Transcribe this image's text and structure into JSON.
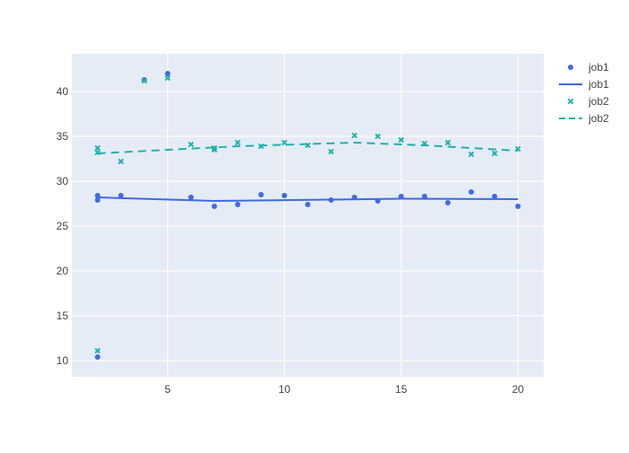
{
  "chart_data": {
    "type": "scatter",
    "title": "",
    "xlabel": "",
    "ylabel": "",
    "xlim": [
      0.9,
      21.1
    ],
    "ylim": [
      8.2,
      44.2
    ],
    "x_ticks": [
      5,
      10,
      15,
      20
    ],
    "y_ticks": [
      10,
      15,
      20,
      25,
      30,
      35,
      40
    ],
    "grid": true,
    "legend_position": "top-right",
    "colors": {
      "plot_bg": "#e5ecf6",
      "grid": "#ffffff",
      "job1": "#4169e1",
      "job2": "#20b2aa"
    },
    "series": [
      {
        "name": "job1",
        "mode": "markers",
        "marker": "circle",
        "color": "#4169e1",
        "x": [
          2,
          2,
          2,
          3,
          4,
          5,
          6,
          7,
          8,
          9,
          10,
          11,
          12,
          13,
          14,
          15,
          16,
          17,
          18,
          19,
          20
        ],
        "y": [
          28.4,
          27.9,
          10.4,
          28.4,
          41.3,
          42.0,
          28.2,
          27.2,
          27.4,
          28.5,
          28.4,
          27.4,
          27.9,
          28.2,
          27.8,
          28.3,
          28.3,
          27.6,
          28.8,
          28.3,
          27.2
        ]
      },
      {
        "name": "job1",
        "mode": "lines",
        "dash": "solid",
        "color": "#4169e1",
        "x": [
          2,
          7,
          12,
          15,
          20
        ],
        "y": [
          28.2,
          27.8,
          27.95,
          28.05,
          28.0
        ]
      },
      {
        "name": "job2",
        "mode": "markers",
        "marker": "x",
        "color": "#20b2aa",
        "x": [
          2,
          2,
          2,
          3,
          4,
          5,
          6,
          7,
          7,
          8,
          9,
          10,
          11,
          12,
          13,
          14,
          15,
          16,
          17,
          18,
          19,
          20
        ],
        "y": [
          33.7,
          33.2,
          11.1,
          32.2,
          41.2,
          41.5,
          34.1,
          33.5,
          33.7,
          34.3,
          33.9,
          34.3,
          34.0,
          33.3,
          35.1,
          35.0,
          34.6,
          34.2,
          34.3,
          33.0,
          33.1,
          33.6
        ]
      },
      {
        "name": "job2",
        "mode": "lines",
        "dash": "dash",
        "color": "#20b2aa",
        "x": [
          2,
          8,
          13,
          16,
          20
        ],
        "y": [
          33.1,
          33.9,
          34.3,
          34.0,
          33.4
        ]
      }
    ]
  }
}
